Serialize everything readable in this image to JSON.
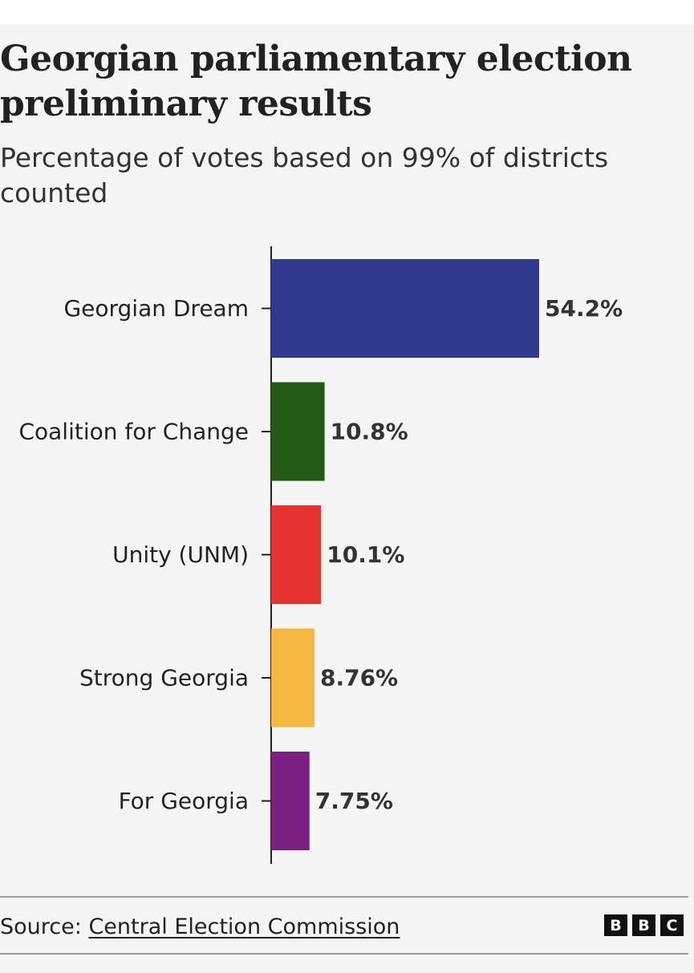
{
  "header": {
    "title": "Georgian parliamentary election preliminary results",
    "subtitle": "Percentage of votes based on 99% of districts counted"
  },
  "footer": {
    "source_prefix": "Source:",
    "source_link": "Central Election Commission",
    "logo_letters": [
      "B",
      "B",
      "C"
    ]
  },
  "colors": {
    "axis": "#222222",
    "background": "#f5f5f5"
  },
  "chart_data": {
    "type": "bar",
    "orientation": "horizontal",
    "title": "Georgian parliamentary election preliminary results",
    "subtitle": "Percentage of votes based on 99% of districts counted",
    "categories": [
      "Georgian Dream",
      "Coalition for Change",
      "Unity (UNM)",
      "Strong Georgia",
      "For Georgia"
    ],
    "values": [
      54.2,
      10.8,
      10.1,
      8.76,
      7.75
    ],
    "value_labels": [
      "54.2%",
      "10.8%",
      "10.1%",
      "8.76%",
      "7.75%"
    ],
    "colors": [
      "#303b90",
      "#235b16",
      "#e5332f",
      "#f5b942",
      "#7a2080"
    ],
    "xlim": [
      0,
      100
    ],
    "xlabel": "",
    "ylabel": "",
    "grid": false,
    "legend": "none"
  }
}
